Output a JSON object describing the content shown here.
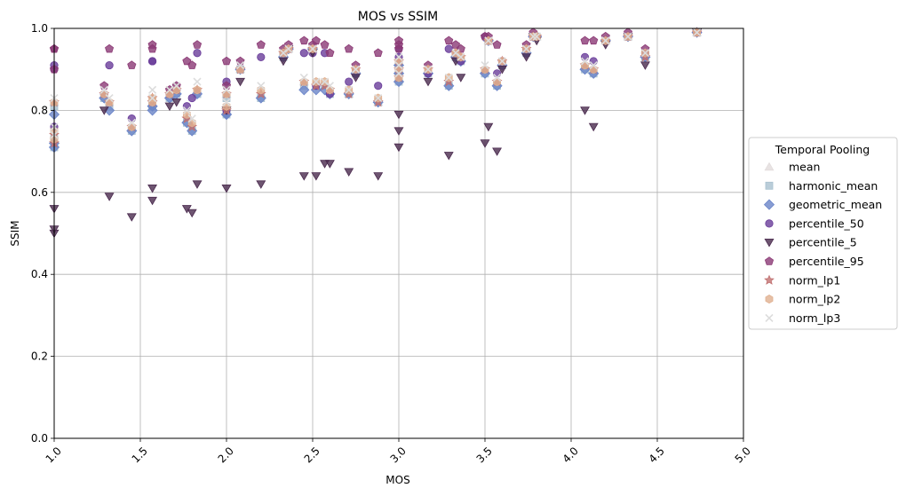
{
  "chart_data": {
    "type": "scatter",
    "title": "MOS vs SSIM",
    "xlabel": "MOS",
    "ylabel": "SSIM",
    "xlim": [
      1.0,
      5.0
    ],
    "ylim": [
      0.0,
      1.0
    ],
    "xticks": [
      "1.0",
      "1.5",
      "2.0",
      "2.5",
      "3.0",
      "3.5",
      "4.0",
      "4.5",
      "5.0"
    ],
    "yticks": [
      "0.0",
      "0.2",
      "0.4",
      "0.6",
      "0.8",
      "1.0"
    ],
    "grid": true,
    "legend": {
      "title": "Temporal Pooling",
      "position": "center-right-outside"
    },
    "x": [
      1.0,
      1.0,
      1.0,
      1.29,
      1.32,
      1.45,
      1.57,
      1.57,
      1.67,
      1.71,
      1.77,
      1.8,
      1.83,
      2.0,
      2.0,
      2.08,
      2.2,
      2.33,
      2.36,
      2.45,
      2.5,
      2.52,
      2.57,
      2.6,
      2.71,
      2.75,
      2.88,
      3.0,
      3.0,
      3.0,
      3.17,
      3.29,
      3.33,
      3.36,
      3.5,
      3.52,
      3.57,
      3.6,
      3.74,
      3.78,
      3.8,
      4.08,
      4.13,
      4.2,
      4.33,
      4.43,
      4.73
    ],
    "series": [
      {
        "name": "mean",
        "marker": "triangle",
        "color": "#e2dcdc",
        "y": [
          0.82,
          0.74,
          0.72,
          0.84,
          0.82,
          0.76,
          0.83,
          0.82,
          0.84,
          0.85,
          0.78,
          0.76,
          0.85,
          0.84,
          0.8,
          0.9,
          0.84,
          0.94,
          0.95,
          0.87,
          0.95,
          0.86,
          0.86,
          0.85,
          0.84,
          0.9,
          0.82,
          0.88,
          0.9,
          0.92,
          0.9,
          0.87,
          0.94,
          0.93,
          0.9,
          0.97,
          0.87,
          0.92,
          0.95,
          0.98,
          0.98,
          0.91,
          0.9,
          0.97,
          0.98,
          0.93,
          0.99
        ]
      },
      {
        "name": "harmonic_mean",
        "marker": "square",
        "color": "#a9c1cf",
        "y": [
          0.81,
          0.73,
          0.71,
          0.83,
          0.81,
          0.75,
          0.81,
          0.81,
          0.83,
          0.84,
          0.77,
          0.75,
          0.84,
          0.83,
          0.79,
          0.9,
          0.83,
          0.93,
          0.95,
          0.86,
          0.95,
          0.86,
          0.86,
          0.84,
          0.84,
          0.89,
          0.82,
          0.87,
          0.89,
          0.91,
          0.89,
          0.86,
          0.93,
          0.92,
          0.89,
          0.97,
          0.86,
          0.91,
          0.94,
          0.98,
          0.98,
          0.9,
          0.89,
          0.97,
          0.98,
          0.93,
          0.99
        ]
      },
      {
        "name": "geometric_mean",
        "marker": "diamond",
        "color": "#6a84c8",
        "y": [
          0.79,
          0.72,
          0.71,
          0.83,
          0.8,
          0.75,
          0.81,
          0.8,
          0.83,
          0.84,
          0.77,
          0.75,
          0.84,
          0.79,
          0.79,
          0.9,
          0.83,
          0.93,
          0.95,
          0.85,
          0.95,
          0.85,
          0.85,
          0.84,
          0.84,
          0.89,
          0.82,
          0.87,
          0.89,
          0.91,
          0.89,
          0.86,
          0.93,
          0.92,
          0.89,
          0.97,
          0.86,
          0.91,
          0.94,
          0.98,
          0.98,
          0.9,
          0.89,
          0.97,
          0.98,
          0.93,
          0.99
        ]
      },
      {
        "name": "percentile_50",
        "marker": "circle",
        "color": "#6a3d9a",
        "y": [
          0.9,
          0.91,
          0.76,
          0.84,
          0.91,
          0.78,
          0.92,
          0.92,
          0.84,
          0.85,
          0.81,
          0.83,
          0.94,
          0.87,
          0.8,
          0.9,
          0.93,
          0.94,
          0.95,
          0.94,
          0.94,
          0.86,
          0.94,
          0.84,
          0.87,
          0.9,
          0.86,
          0.95,
          0.9,
          0.93,
          0.89,
          0.95,
          0.94,
          0.92,
          0.98,
          0.97,
          0.89,
          0.92,
          0.95,
          0.98,
          0.98,
          0.93,
          0.92,
          0.97,
          0.98,
          0.94,
          0.99
        ]
      },
      {
        "name": "percentile_5",
        "marker": "triangle-down",
        "color": "#4a2a4e",
        "y": [
          0.56,
          0.5,
          0.51,
          0.8,
          0.59,
          0.54,
          0.61,
          0.58,
          0.81,
          0.82,
          0.56,
          0.55,
          0.62,
          0.61,
          0.8,
          0.87,
          0.62,
          0.92,
          0.95,
          0.64,
          0.94,
          0.64,
          0.67,
          0.67,
          0.65,
          0.88,
          0.64,
          0.71,
          0.75,
          0.79,
          0.87,
          0.69,
          0.92,
          0.88,
          0.72,
          0.76,
          0.7,
          0.9,
          0.93,
          0.98,
          0.97,
          0.8,
          0.76,
          0.96,
          0.98,
          0.91,
          0.99
        ]
      },
      {
        "name": "percentile_95",
        "marker": "pentagon",
        "color": "#8b3a75",
        "y": [
          0.95,
          0.95,
          0.9,
          0.86,
          0.95,
          0.91,
          0.96,
          0.95,
          0.85,
          0.86,
          0.92,
          0.91,
          0.96,
          0.92,
          0.86,
          0.92,
          0.96,
          0.95,
          0.96,
          0.97,
          0.96,
          0.97,
          0.96,
          0.94,
          0.95,
          0.91,
          0.94,
          0.97,
          0.96,
          0.95,
          0.91,
          0.97,
          0.96,
          0.95,
          0.98,
          0.98,
          0.96,
          0.92,
          0.96,
          0.99,
          0.98,
          0.97,
          0.97,
          0.98,
          0.99,
          0.95,
          0.99
        ]
      },
      {
        "name": "norm_lp1",
        "marker": "star",
        "color": "#c07070",
        "y": [
          0.82,
          0.74,
          0.72,
          0.84,
          0.82,
          0.76,
          0.83,
          0.82,
          0.84,
          0.85,
          0.78,
          0.76,
          0.85,
          0.84,
          0.8,
          0.9,
          0.84,
          0.94,
          0.95,
          0.87,
          0.95,
          0.86,
          0.86,
          0.85,
          0.84,
          0.9,
          0.82,
          0.88,
          0.9,
          0.92,
          0.9,
          0.87,
          0.94,
          0.93,
          0.9,
          0.97,
          0.87,
          0.92,
          0.95,
          0.98,
          0.98,
          0.91,
          0.9,
          0.97,
          0.98,
          0.93,
          0.99
        ]
      },
      {
        "name": "norm_lp2",
        "marker": "hexagon",
        "color": "#e0b090",
        "y": [
          0.82,
          0.75,
          0.73,
          0.84,
          0.82,
          0.76,
          0.83,
          0.82,
          0.84,
          0.85,
          0.79,
          0.77,
          0.85,
          0.84,
          0.81,
          0.9,
          0.85,
          0.94,
          0.95,
          0.87,
          0.95,
          0.87,
          0.87,
          0.85,
          0.85,
          0.9,
          0.83,
          0.88,
          0.9,
          0.92,
          0.9,
          0.88,
          0.94,
          0.93,
          0.9,
          0.97,
          0.87,
          0.92,
          0.95,
          0.98,
          0.98,
          0.91,
          0.9,
          0.97,
          0.98,
          0.94,
          0.99
        ]
      },
      {
        "name": "norm_lp3",
        "marker": "x",
        "color": "#dcdcdc",
        "y": [
          0.83,
          0.76,
          0.74,
          0.85,
          0.83,
          0.77,
          0.85,
          0.83,
          0.85,
          0.86,
          0.8,
          0.78,
          0.87,
          0.85,
          0.82,
          0.91,
          0.86,
          0.94,
          0.95,
          0.88,
          0.95,
          0.87,
          0.87,
          0.86,
          0.85,
          0.9,
          0.83,
          0.89,
          0.91,
          0.93,
          0.9,
          0.88,
          0.94,
          0.93,
          0.91,
          0.97,
          0.88,
          0.92,
          0.95,
          0.98,
          0.98,
          0.92,
          0.91,
          0.97,
          0.98,
          0.94,
          0.99
        ]
      }
    ]
  }
}
